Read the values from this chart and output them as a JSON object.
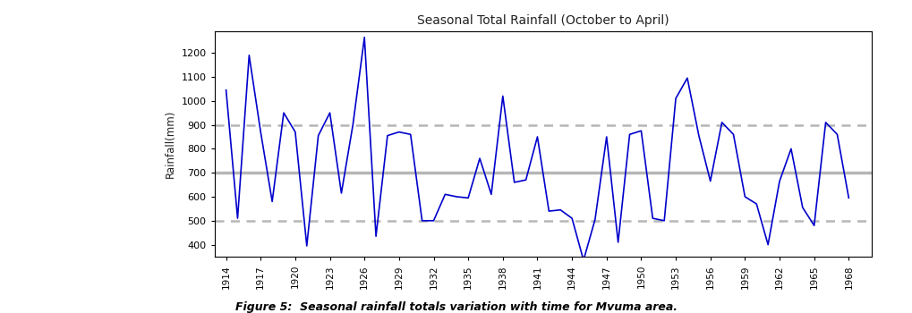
{
  "title": "Seasonal Total Rainfall (October to April)",
  "ylabel": "Rainfall(mm)",
  "caption": "Figure 5:  Seasonal rainfall totals variation with time for Mvuma area.",
  "line_color": "#0000CC",
  "line_width": 1.2,
  "hline_solid_color": "#aaaaaa",
  "hline_solid_y": 700,
  "hline_solid_lw": 2.5,
  "hline_dot1_color": "#aaaaaa",
  "hline_dot1_y": 900,
  "hline_dot2_y": 500,
  "ylim": [
    350,
    1290
  ],
  "yticks": [
    400,
    500,
    600,
    700,
    800,
    900,
    1000,
    1100,
    1200
  ],
  "xtick_start": 1914,
  "xtick_end": 1969,
  "xtick_step": 3,
  "xlim_left": 1913,
  "xlim_right": 1970,
  "years": [
    1914,
    1915,
    1916,
    1917,
    1918,
    1919,
    1920,
    1921,
    1922,
    1923,
    1924,
    1925,
    1926,
    1927,
    1928,
    1929,
    1930,
    1931,
    1932,
    1933,
    1934,
    1935,
    1936,
    1937,
    1938,
    1939,
    1940,
    1941,
    1942,
    1943,
    1944,
    1945,
    1946,
    1947,
    1948,
    1949,
    1950,
    1951,
    1952,
    1953,
    1954,
    1955,
    1956,
    1957,
    1958,
    1959,
    1960,
    1961,
    1962,
    1963,
    1964,
    1965,
    1966,
    1967,
    1968
  ],
  "rainfall": [
    1045,
    510,
    1190,
    870,
    580,
    950,
    870,
    395,
    855,
    950,
    615,
    900,
    1265,
    435,
    855,
    870,
    860,
    500,
    500,
    610,
    600,
    595,
    760,
    610,
    1020,
    660,
    670,
    850,
    540,
    545,
    510,
    335,
    505,
    850,
    410,
    860,
    875,
    510,
    500,
    1010,
    1095,
    855,
    665,
    910,
    860,
    600,
    570,
    400,
    665,
    800,
    555,
    480,
    910,
    860,
    595
  ]
}
